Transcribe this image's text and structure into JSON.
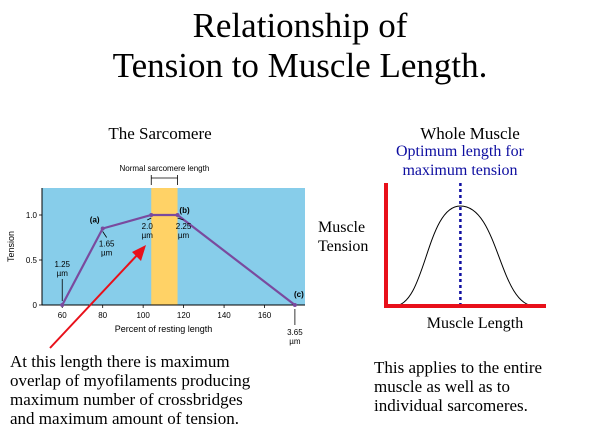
{
  "title_line1": "Relationship of",
  "title_line2": "Tension to Muscle Length.",
  "left_heading": "The Sarcomere",
  "right_heading": "Whole Muscle",
  "optimum_label_line1": "Optimum length for",
  "optimum_label_line2": "maximum tension",
  "right_ylabel_line1": "Muscle",
  "right_ylabel_line2": "Tension",
  "right_xlabel": "Muscle Length",
  "note_left": [
    "At this length there is maximum",
    "overlap of myofilaments producing",
    "maximum number of crossbridges",
    "and maximum amount of tension."
  ],
  "note_right": [
    "This applies to the entire",
    "muscle as well as to",
    "individual sarcomeres."
  ],
  "colors": {
    "plot_bg": "#87cdea",
    "optimal_band": "#ffd266",
    "curve": "#7a4a9e",
    "arrow": "#e8101a",
    "axis_right": "#e8101a",
    "optimum_line": "#0d0da0"
  },
  "chart_data": [
    {
      "type": "line",
      "title": "",
      "xlabel": "Percent of resting length",
      "ylabel": "Tension",
      "xlim": [
        50,
        180
      ],
      "ylim": [
        0,
        1.3
      ],
      "xticks": [
        "60",
        "80",
        "100",
        "120",
        "140",
        "160"
      ],
      "yticks": [
        "0",
        "0.5",
        "1.0"
      ],
      "bracket_label": "Normal sarcomere length",
      "optimal_band": [
        104,
        117
      ],
      "series": [
        {
          "x": [
            60,
            80,
            104,
            117,
            175
          ],
          "y": [
            0,
            0.85,
            1.0,
            1.0,
            0
          ]
        }
      ],
      "annotations": [
        {
          "text": "(a)",
          "x": 80,
          "y": 0.85
        },
        {
          "text": "(b)",
          "x": 117,
          "y": 1.0
        },
        {
          "text": "(c)",
          "x": 175,
          "y": 0
        },
        {
          "lines": [
            "1.25",
            "µm"
          ],
          "x": 60,
          "y": 0
        },
        {
          "lines": [
            "1.65",
            "µm"
          ],
          "x": 80,
          "y": 0.85
        },
        {
          "lines": [
            "2.0",
            "µm"
          ],
          "x": 104,
          "y": 1.0
        },
        {
          "lines": [
            "2.25",
            "µm"
          ],
          "x": 117,
          "y": 1.0
        },
        {
          "lines": [
            "3.65",
            "µm"
          ],
          "x": 175,
          "y": 0
        }
      ]
    },
    {
      "type": "line",
      "title": "Whole Muscle",
      "xlabel": "Muscle Length",
      "ylabel": "Muscle Tension",
      "shape": "bell",
      "peak": "Optimum length for maximum tension"
    }
  ]
}
